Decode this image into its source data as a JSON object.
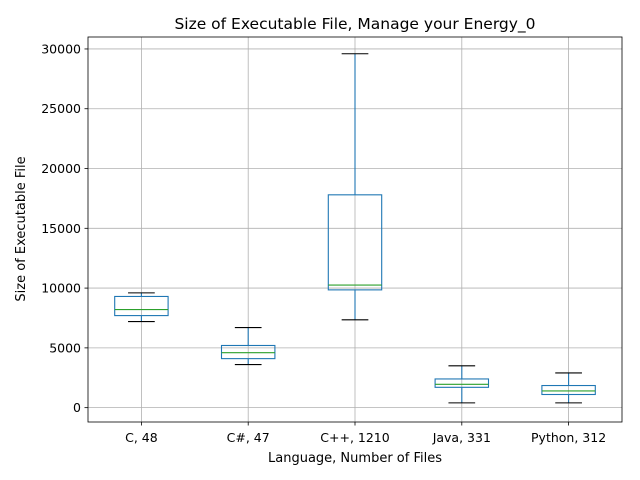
{
  "chart_data": {
    "type": "box",
    "title": "Size of Executable File, Manage your Energy_0",
    "xlabel": "Language, Number of Files",
    "ylabel": "Size of Executable File",
    "ylim": [
      -1200,
      31000
    ],
    "yticks": [
      0,
      5000,
      10000,
      15000,
      20000,
      25000,
      30000
    ],
    "ytick_labels": [
      "0",
      "5000",
      "10000",
      "15000",
      "20000",
      "25000",
      "30000"
    ],
    "grid": true,
    "categories": [
      "C, 48",
      "C#, 47",
      "C++, 1210",
      "Java, 331",
      "Python, 312"
    ],
    "boxes": [
      {
        "whisker_low": 7200,
        "q1": 7700,
        "median": 8200,
        "q3": 9300,
        "whisker_high": 9600
      },
      {
        "whisker_low": 3600,
        "q1": 4100,
        "median": 4600,
        "q3": 5200,
        "whisker_high": 6700
      },
      {
        "whisker_low": 7350,
        "q1": 9850,
        "median": 10250,
        "q3": 17800,
        "whisker_high": 29600
      },
      {
        "whisker_low": 400,
        "q1": 1700,
        "median": 1950,
        "q3": 2400,
        "whisker_high": 3500
      },
      {
        "whisker_low": 400,
        "q1": 1100,
        "median": 1400,
        "q3": 1850,
        "whisker_high": 2900
      }
    ],
    "colors": {
      "box": "#1f77b4",
      "median": "#2ca02c",
      "whisker_cap": "#000000",
      "grid": "#b0b0b0"
    }
  }
}
